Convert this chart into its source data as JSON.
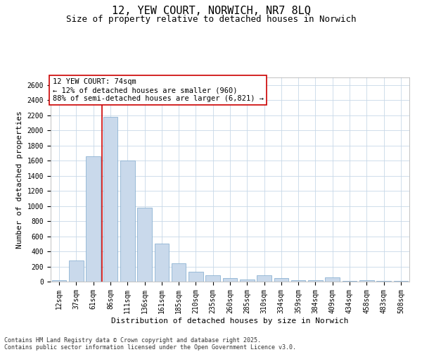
{
  "title1": "12, YEW COURT, NORWICH, NR7 8LQ",
  "title2": "Size of property relative to detached houses in Norwich",
  "xlabel": "Distribution of detached houses by size in Norwich",
  "ylabel": "Number of detached properties",
  "categories": [
    "12sqm",
    "37sqm",
    "61sqm",
    "86sqm",
    "111sqm",
    "136sqm",
    "161sqm",
    "185sqm",
    "210sqm",
    "235sqm",
    "260sqm",
    "285sqm",
    "310sqm",
    "334sqm",
    "359sqm",
    "384sqm",
    "409sqm",
    "434sqm",
    "458sqm",
    "483sqm",
    "508sqm"
  ],
  "values": [
    20,
    280,
    1660,
    2180,
    1600,
    980,
    500,
    240,
    130,
    80,
    50,
    30,
    80,
    50,
    20,
    20,
    60,
    10,
    20,
    10,
    5
  ],
  "bar_color": "#c9d9eb",
  "bar_edge_color": "#7da8cc",
  "vline_color": "#cc0000",
  "vline_x_index": 2.5,
  "annotation_text": "12 YEW COURT: 74sqm\n← 12% of detached houses are smaller (960)\n88% of semi-detached houses are larger (6,821) →",
  "annotation_box_color": "#ffffff",
  "annotation_box_edge": "#cc0000",
  "ylim": [
    0,
    2700
  ],
  "yticks": [
    0,
    200,
    400,
    600,
    800,
    1000,
    1200,
    1400,
    1600,
    1800,
    2000,
    2200,
    2400,
    2600
  ],
  "footer1": "Contains HM Land Registry data © Crown copyright and database right 2025.",
  "footer2": "Contains public sector information licensed under the Open Government Licence v3.0.",
  "bg_color": "#ffffff",
  "grid_color": "#c8d8e8",
  "title_fontsize": 11,
  "subtitle_fontsize": 9,
  "axis_label_fontsize": 8,
  "tick_fontsize": 7,
  "footer_fontsize": 6,
  "annotation_fontsize": 7.5
}
